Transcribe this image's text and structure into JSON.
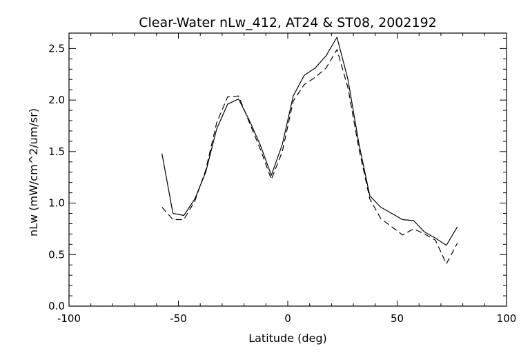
{
  "chart_data": {
    "type": "line",
    "title": "Clear-Water nLw_412, AT24 & ST08, 2002192",
    "xlabel": "Latitude (deg)",
    "ylabel": "nLw (mW/cm^2/um/sr)",
    "xlim": [
      -100,
      100
    ],
    "ylim": [
      0.0,
      2.65
    ],
    "xticks": [
      -100,
      -50,
      0,
      50,
      100
    ],
    "yticks": [
      "0.0",
      "0.5",
      "1.0",
      "1.5",
      "2.0",
      "2.5"
    ],
    "grid": false,
    "legend": "none",
    "series": [
      {
        "style": "solid",
        "color": "#000000",
        "x": [
          -57.5,
          -52.5,
          -47.5,
          -42.5,
          -37.5,
          -32.5,
          -27.5,
          -22.5,
          -17.5,
          -12.5,
          -7.5,
          -2.5,
          2.5,
          7.5,
          12.5,
          17.5,
          22.5,
          27.5,
          32.5,
          37.5,
          42.5,
          47.5,
          52.5,
          57.5,
          62.5,
          67.5,
          72.5,
          77.5
        ],
        "y": [
          1.48,
          0.9,
          0.88,
          1.04,
          1.3,
          1.72,
          1.96,
          2.01,
          1.8,
          1.56,
          1.27,
          1.57,
          2.04,
          2.24,
          2.31,
          2.43,
          2.61,
          2.2,
          1.58,
          1.07,
          0.96,
          0.9,
          0.84,
          0.83,
          0.72,
          0.66,
          0.59,
          0.77
        ]
      },
      {
        "style": "dashed",
        "color": "#000000",
        "x": [
          -57.5,
          -52.5,
          -47.5,
          -42.5,
          -37.5,
          -32.5,
          -27.5,
          -22.5,
          -17.5,
          -12.5,
          -7.5,
          -2.5,
          2.5,
          7.5,
          12.5,
          17.5,
          22.5,
          27.5,
          32.5,
          37.5,
          42.5,
          47.5,
          52.5,
          57.5,
          62.5,
          67.5,
          72.5,
          77.5
        ],
        "y": [
          0.96,
          0.84,
          0.84,
          1.02,
          1.32,
          1.78,
          2.03,
          2.04,
          1.78,
          1.52,
          1.23,
          1.5,
          1.99,
          2.15,
          2.22,
          2.31,
          2.49,
          2.12,
          1.53,
          1.04,
          0.85,
          0.77,
          0.69,
          0.75,
          0.7,
          0.64,
          0.41,
          0.61
        ]
      }
    ]
  }
}
